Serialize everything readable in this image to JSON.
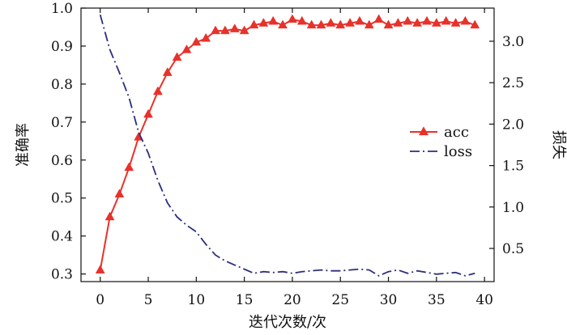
{
  "chart_data": {
    "type": "line",
    "xlabel": "迭代次数/次",
    "ylabel": "准确率",
    "y2label": "损失",
    "xlim": [
      -2,
      41
    ],
    "ylim": [
      0.28,
      1.0
    ],
    "y2lim": [
      0.1,
      3.4
    ],
    "xticks": [
      0,
      5,
      10,
      15,
      20,
      25,
      30,
      35,
      40
    ],
    "yticks": [
      0.3,
      0.4,
      0.5,
      0.6,
      0.7,
      0.8,
      0.9,
      1.0
    ],
    "y2ticks": [
      0.5,
      1.0,
      1.5,
      2.0,
      2.5,
      3.0
    ],
    "legend_position": "center-right",
    "grid": false,
    "series": [
      {
        "name": "acc",
        "axis": "left",
        "color": "#e8312a",
        "marker": "triangle",
        "x": [
          0,
          1,
          2,
          3,
          4,
          5,
          6,
          7,
          8,
          9,
          10,
          11,
          12,
          13,
          14,
          15,
          16,
          17,
          18,
          19,
          20,
          21,
          22,
          23,
          24,
          25,
          26,
          27,
          28,
          29,
          30,
          31,
          32,
          33,
          34,
          35,
          36,
          37,
          38,
          39
        ],
        "values": [
          0.31,
          0.45,
          0.51,
          0.58,
          0.66,
          0.72,
          0.78,
          0.83,
          0.87,
          0.89,
          0.91,
          0.92,
          0.94,
          0.94,
          0.945,
          0.94,
          0.955,
          0.96,
          0.965,
          0.955,
          0.97,
          0.965,
          0.955,
          0.955,
          0.96,
          0.955,
          0.96,
          0.965,
          0.955,
          0.97,
          0.955,
          0.96,
          0.965,
          0.96,
          0.965,
          0.96,
          0.965,
          0.96,
          0.965,
          0.955
        ]
      },
      {
        "name": "loss",
        "axis": "right",
        "color": "#2b2e7e",
        "line_style": "dash-dot",
        "x": [
          0,
          1,
          2,
          3,
          4,
          5,
          6,
          7,
          8,
          9,
          10,
          11,
          12,
          13,
          14,
          15,
          16,
          17,
          18,
          19,
          20,
          21,
          22,
          23,
          24,
          25,
          26,
          27,
          28,
          29,
          30,
          31,
          32,
          33,
          34,
          35,
          36,
          37,
          38,
          39
        ],
        "values": [
          3.32,
          2.9,
          2.62,
          2.32,
          1.9,
          1.65,
          1.32,
          1.05,
          0.88,
          0.78,
          0.7,
          0.55,
          0.42,
          0.35,
          0.3,
          0.25,
          0.2,
          0.22,
          0.21,
          0.22,
          0.2,
          0.22,
          0.23,
          0.24,
          0.23,
          0.23,
          0.24,
          0.25,
          0.24,
          0.17,
          0.22,
          0.24,
          0.2,
          0.23,
          0.21,
          0.19,
          0.2,
          0.21,
          0.17,
          0.2
        ]
      }
    ]
  }
}
